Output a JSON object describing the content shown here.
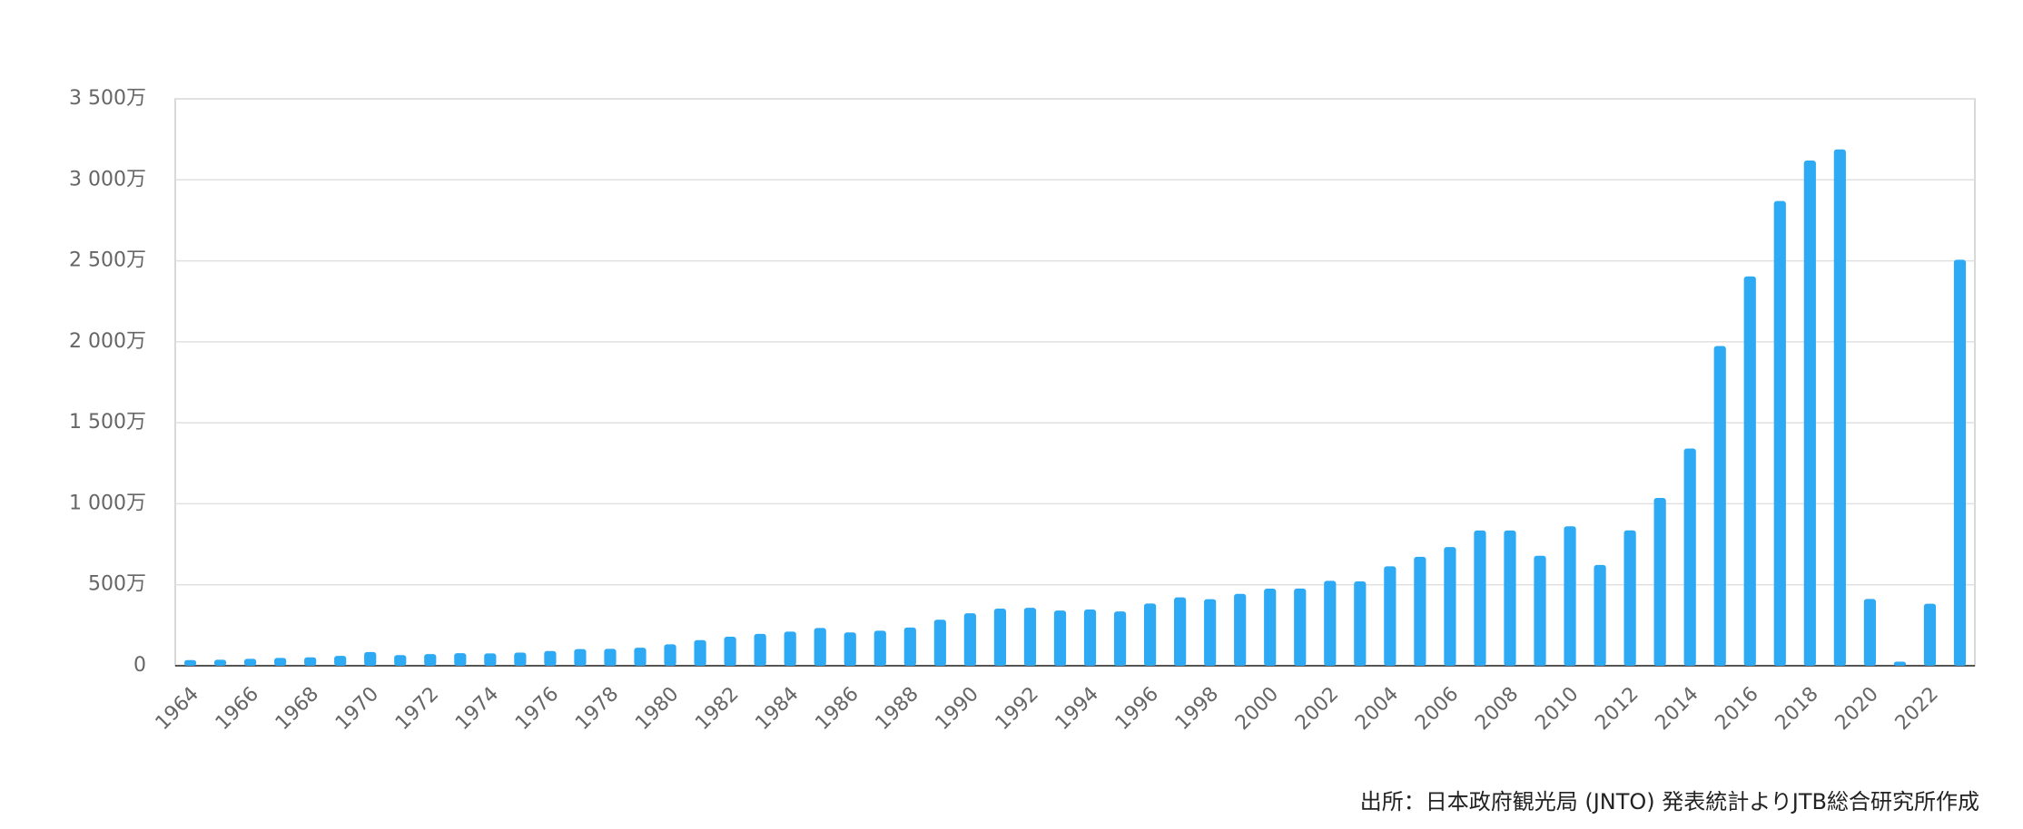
{
  "chart_data": {
    "type": "bar",
    "source": "出所：日本政府観光局 (JNTO) 発表統計よりJTB総合研究所作成",
    "x": [
      1964,
      1965,
      1966,
      1967,
      1968,
      1969,
      1970,
      1971,
      1972,
      1973,
      1974,
      1975,
      1976,
      1977,
      1978,
      1979,
      1980,
      1981,
      1982,
      1983,
      1984,
      1985,
      1986,
      1987,
      1988,
      1989,
      1990,
      1991,
      1992,
      1993,
      1994,
      1995,
      1996,
      1997,
      1998,
      1999,
      2000,
      2001,
      2002,
      2003,
      2004,
      2005,
      2006,
      2007,
      2008,
      2009,
      2010,
      2011,
      2012,
      2013,
      2014,
      2015,
      2016,
      2017,
      2018,
      2019,
      2020,
      2021,
      2022,
      2023
    ],
    "values": [
      35,
      37,
      43,
      48,
      52,
      61,
      85,
      66,
      72,
      78,
      76,
      81,
      91,
      103,
      104,
      111,
      132,
      158,
      179,
      197,
      211,
      233,
      206,
      216,
      236,
      284,
      324,
      353,
      358,
      341,
      347,
      335,
      384,
      422,
      411,
      444,
      476,
      477,
      524,
      521,
      614,
      673,
      733,
      835,
      835,
      679,
      861,
      622,
      836,
      1036,
      1341,
      1974,
      2404,
      2869,
      3119,
      3188,
      412,
      25,
      383,
      2507
    ],
    "color": "#2eaaf5",
    "xlim": [
      1963.5,
      2023.5
    ],
    "xticks": [
      1964,
      1966,
      1968,
      1970,
      1972,
      1974,
      1976,
      1978,
      1980,
      1982,
      1984,
      1986,
      1988,
      1990,
      1992,
      1994,
      1996,
      1998,
      2000,
      2002,
      2004,
      2006,
      2008,
      2010,
      2012,
      2014,
      2016,
      2018,
      2020,
      2022
    ],
    "ylim": [
      0,
      3500
    ],
    "yticks": [
      0,
      {
        "value": 500,
        "label": "500万"
      },
      {
        "value": 1000,
        "label": "1 000万"
      },
      {
        "value": 1500,
        "label": "1 500万"
      },
      {
        "value": 2000,
        "label": "2 000万"
      },
      {
        "value": 2500,
        "label": "2 500万"
      },
      {
        "value": 3000,
        "label": "3 000万"
      },
      {
        "value": 3500,
        "label": "3 500万"
      }
    ],
    "grid": true
  }
}
